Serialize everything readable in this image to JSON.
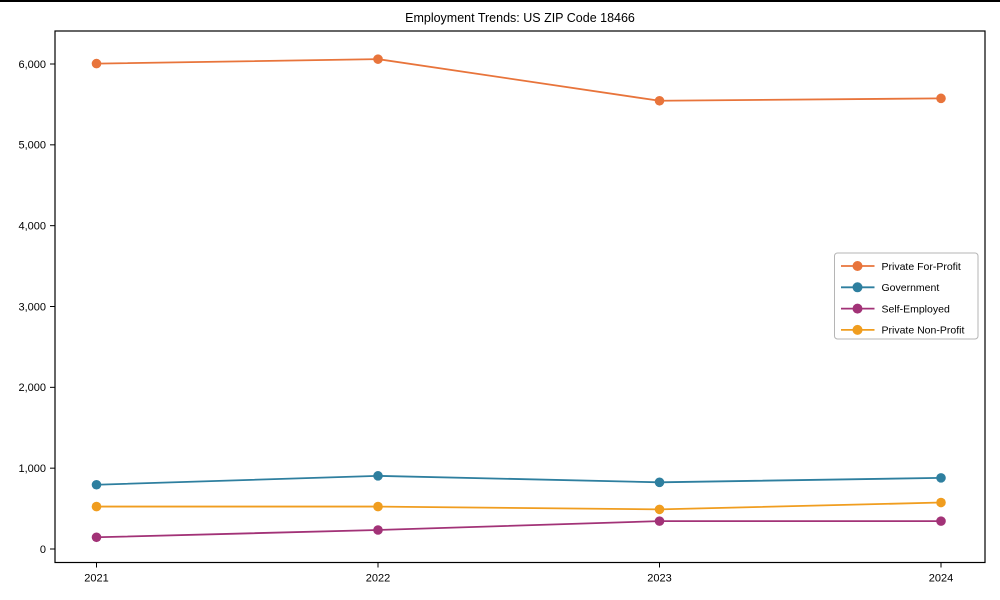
{
  "figure": {
    "background": "#ffffff",
    "border_color": "#000000"
  },
  "chart_data": {
    "type": "line",
    "title": "Employment Trends: US ZIP Code 18466",
    "xlabel": "",
    "ylabel": "",
    "grid": false,
    "x_categories": [
      "2021",
      "2022",
      "2023",
      "2024"
    ],
    "series": [
      {
        "name": "Private For-Profit",
        "color": "#e8743b",
        "values": [
          6005,
          6060,
          5545,
          5575
        ]
      },
      {
        "name": "Government",
        "color": "#2e7f9f",
        "values": [
          795,
          905,
          825,
          880
        ]
      },
      {
        "name": "Self-Employed",
        "color": "#a23277",
        "values": [
          145,
          235,
          345,
          345
        ]
      },
      {
        "name": "Private Non-Profit",
        "color": "#f09d1f",
        "values": [
          525,
          525,
          490,
          575
        ]
      }
    ],
    "yticks": {
      "values": [
        0,
        1000,
        2000,
        3000,
        4000,
        5000,
        6000
      ],
      "labels": [
        "0",
        "1,000",
        "2,000",
        "3,000",
        "4,000",
        "5,000",
        "6,000"
      ]
    },
    "ylim": [
      -170,
      6410
    ],
    "legend": {
      "position": "center-right",
      "entries": [
        "Private For-Profit",
        "Government",
        "Self-Employed",
        "Private Non-Profit"
      ]
    },
    "axis_color": "#000000",
    "legend_border_color": "#b5b5b5"
  }
}
